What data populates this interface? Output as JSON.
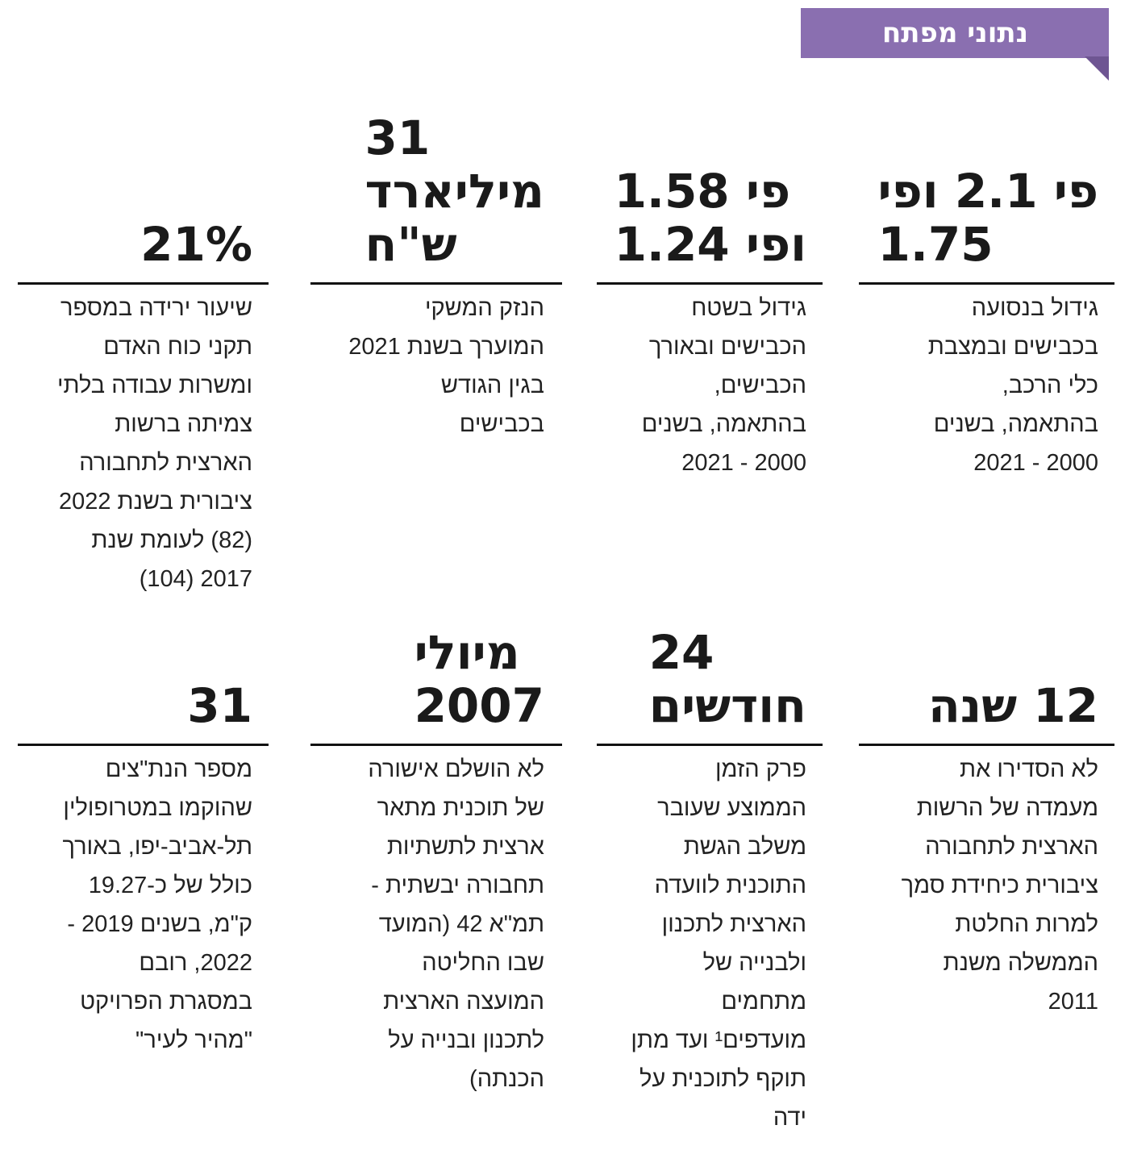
{
  "header": {
    "title": "נתוני מפתח"
  },
  "cards": [
    {
      "headline": [
        "פי 2.1 ופי",
        "1.75"
      ],
      "body": [
        "גידול בנסועה",
        "בכבישים ובמצבת",
        "כלי הרכב,",
        "בהתאמה, בשנים",
        "2000 - 2021"
      ]
    },
    {
      "headline": [
        "פי 1.58",
        "ופי 1.24"
      ],
      "body": [
        "גידול בשטח",
        "הכבישים ובאורך",
        "הכבישים,",
        "בהתאמה, בשנים",
        "2000 - 2021"
      ]
    },
    {
      "headline": [
        "31",
        "מיליארד",
        "ש\"ח"
      ],
      "body": [
        "הנזק המשקי",
        "המוערך בשנת 2021",
        "בגין הגודש",
        "בכבישים"
      ]
    },
    {
      "headline": [
        "21%"
      ],
      "body": [
        "שיעור ירידה במספר",
        "תקני כוח האדם",
        "ומשרות עבודה בלתי",
        "צמיתה ברשות",
        "הארצית לתחבורה",
        "ציבורית בשנת 2022",
        "(82) לעומת שנת",
        "2017 (104)"
      ]
    },
    {
      "headline": [
        "12 שנה"
      ],
      "body": [
        "לא הסדירו את",
        "מעמדה של הרשות",
        "הארצית לתחבורה",
        "ציבורית כיחידת סמך",
        "למרות החלטת",
        "הממשלה משנת",
        "2011"
      ]
    },
    {
      "headline": [
        "24",
        "חודשים"
      ],
      "body": [
        "פרק הזמן",
        "הממוצע שעובר",
        "משלב הגשת",
        "התוכנית לוועדה",
        "הארצית לתכנון",
        "ולבנייה של",
        "מתחמים",
        "מועדפים¹ ועד מתן",
        "תוקף לתוכנית על",
        "ידה"
      ]
    },
    {
      "headline": [
        "מיולי",
        "2007"
      ],
      "body": [
        "לא הושלם אישורה",
        "של תוכנית מתאר",
        "ארצית לתשתיות",
        "תחבורה יבשתית -",
        "תמ\"א 42 (המועד",
        "שבו החליטה",
        "המועצה הארצית",
        "לתכנון ובנייה על",
        "הכנתה)"
      ]
    },
    {
      "headline": [
        "31"
      ],
      "body": [
        "מספר הנת\"צים",
        "שהוקמו במטרופולין",
        "תל-אביב-יפו, באורך",
        "כולל של כ-19.27",
        "ק\"מ, בשנים 2019 -",
        "2022, רובם",
        "במסגרת הפרויקט",
        "\"מהיר לעיר\""
      ]
    }
  ]
}
